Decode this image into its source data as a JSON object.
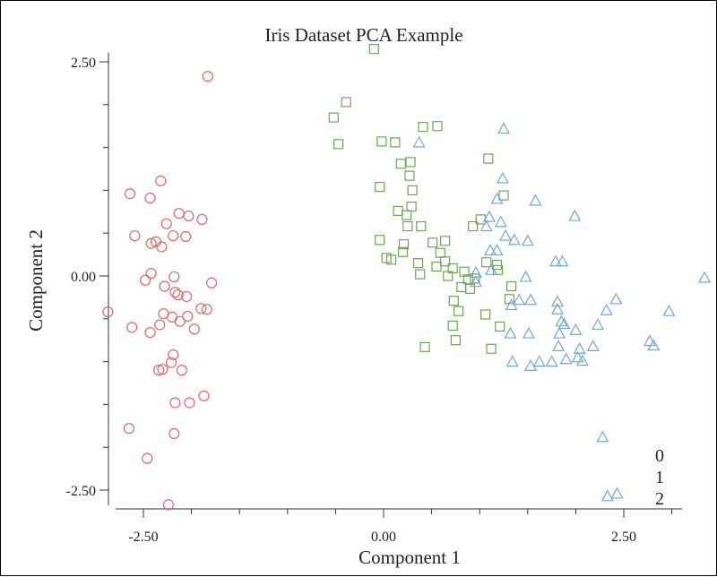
{
  "chart_data": {
    "type": "scatter",
    "title": "Iris Dataset PCA Example",
    "xlabel": "Component 1",
    "ylabel": "Component 2",
    "xlim": [
      -3.0,
      3.4
    ],
    "ylim": [
      -2.7,
      2.7
    ],
    "xticks": [
      -2.5,
      0.0,
      2.5
    ],
    "xtick_labels": [
      "-2.50",
      "0.00",
      "2.50"
    ],
    "yticks": [
      -2.5,
      0.0,
      2.5
    ],
    "ytick_labels": [
      "-2.50",
      "0.00",
      "2.50"
    ],
    "legend_position": "bottom-right",
    "grid": false,
    "series": [
      {
        "name": "0",
        "marker": "circle",
        "color": "#e06666",
        "points": [
          [
            -2.64,
            0.96
          ],
          [
            -2.43,
            0.91
          ],
          [
            -2.32,
            1.11
          ],
          [
            -2.59,
            0.47
          ],
          [
            -2.42,
            0.38
          ],
          [
            -2.13,
            0.73
          ],
          [
            -2.26,
            0.61
          ],
          [
            -2.03,
            0.7
          ],
          [
            -1.89,
            0.66
          ],
          [
            -2.06,
            0.46
          ],
          [
            -2.19,
            0.47
          ],
          [
            -2.37,
            0.4
          ],
          [
            -2.31,
            0.34
          ],
          [
            -1.83,
            2.33
          ],
          [
            -2.87,
            -0.42
          ],
          [
            -2.62,
            -0.6
          ],
          [
            -2.43,
            -0.66
          ],
          [
            -2.48,
            -0.05
          ],
          [
            -2.28,
            -0.12
          ],
          [
            -2.18,
            -0.01
          ],
          [
            -2.14,
            -0.22
          ],
          [
            -2.05,
            -0.24
          ],
          [
            -1.79,
            -0.08
          ],
          [
            -1.9,
            -0.38
          ],
          [
            -2.29,
            -0.44
          ],
          [
            -2.2,
            -0.48
          ],
          [
            -2.12,
            -0.53
          ],
          [
            -2.04,
            -0.47
          ],
          [
            -1.97,
            -0.62
          ],
          [
            -1.84,
            -0.39
          ],
          [
            -2.33,
            -0.57
          ],
          [
            -2.42,
            0.03
          ],
          [
            -2.17,
            -0.19
          ],
          [
            -2.19,
            -0.92
          ],
          [
            -2.21,
            -1.01
          ],
          [
            -2.34,
            -1.1
          ],
          [
            -2.3,
            -1.09
          ],
          [
            -2.1,
            -1.1
          ],
          [
            -2.17,
            -1.48
          ],
          [
            -2.02,
            -1.48
          ],
          [
            -1.87,
            -1.4
          ],
          [
            -2.65,
            -1.78
          ],
          [
            -2.18,
            -1.84
          ],
          [
            -2.46,
            -2.13
          ],
          [
            -2.24,
            -2.67
          ]
        ]
      },
      {
        "name": "1",
        "marker": "square",
        "color": "#6aa84f",
        "points": [
          [
            -0.1,
            2.65
          ],
          [
            -0.39,
            2.03
          ],
          [
            -0.52,
            1.85
          ],
          [
            -0.47,
            1.54
          ],
          [
            0.41,
            1.74
          ],
          [
            0.56,
            1.75
          ],
          [
            -0.02,
            1.57
          ],
          [
            0.12,
            1.56
          ],
          [
            1.09,
            1.37
          ],
          [
            0.28,
            1.33
          ],
          [
            0.18,
            1.31
          ],
          [
            0.27,
            1.17
          ],
          [
            -0.04,
            1.04
          ],
          [
            0.3,
            1.0
          ],
          [
            1.25,
            0.94
          ],
          [
            0.15,
            0.76
          ],
          [
            0.24,
            0.71
          ],
          [
            0.29,
            0.81
          ],
          [
            0.25,
            0.58
          ],
          [
            0.39,
            0.58
          ],
          [
            -0.04,
            0.42
          ],
          [
            0.21,
            0.37
          ],
          [
            0.51,
            0.39
          ],
          [
            0.64,
            0.41
          ],
          [
            0.03,
            0.21
          ],
          [
            0.08,
            0.19
          ],
          [
            0.2,
            0.28
          ],
          [
            0.36,
            0.15
          ],
          [
            0.59,
            0.27
          ],
          [
            0.64,
            0.17
          ],
          [
            0.55,
            0.11
          ],
          [
            0.67,
            0.0
          ],
          [
            0.38,
            0.02
          ],
          [
            0.72,
            0.09
          ],
          [
            0.84,
            0.05
          ],
          [
            1.07,
            0.16
          ],
          [
            1.19,
            0.07
          ],
          [
            1.33,
            -0.12
          ],
          [
            0.9,
            -0.15
          ],
          [
            0.95,
            -0.03
          ],
          [
            0.88,
            -0.04
          ],
          [
            0.93,
            0.58
          ],
          [
            1.18,
            0.13
          ],
          [
            0.81,
            -0.13
          ],
          [
            0.73,
            -0.29
          ],
          [
            0.78,
            -0.41
          ],
          [
            1.06,
            -0.45
          ],
          [
            0.75,
            -0.75
          ],
          [
            0.43,
            -0.83
          ],
          [
            1.21,
            -0.59
          ],
          [
            1.12,
            -0.85
          ],
          [
            0.72,
            -0.58
          ],
          [
            1.31,
            -0.27
          ],
          [
            1.01,
            0.66
          ]
        ]
      },
      {
        "name": "2",
        "marker": "triangle",
        "color": "#6fa8dc",
        "points": [
          [
            1.25,
            1.72
          ],
          [
            0.37,
            1.56
          ],
          [
            1.24,
            1.14
          ],
          [
            1.18,
            0.9
          ],
          [
            1.58,
            0.88
          ],
          [
            1.1,
            0.69
          ],
          [
            1.22,
            0.63
          ],
          [
            1.07,
            0.58
          ],
          [
            1.99,
            0.7
          ],
          [
            1.27,
            0.47
          ],
          [
            1.36,
            0.42
          ],
          [
            1.5,
            0.41
          ],
          [
            1.11,
            0.3
          ],
          [
            1.18,
            0.3
          ],
          [
            1.79,
            0.17
          ],
          [
            1.86,
            0.17
          ],
          [
            1.12,
            0.07
          ],
          [
            1.48,
            -0.01
          ],
          [
            0.96,
            -0.07
          ],
          [
            0.96,
            0.04
          ],
          [
            1.41,
            -0.28
          ],
          [
            1.53,
            -0.28
          ],
          [
            1.33,
            -0.34
          ],
          [
            1.81,
            -0.3
          ],
          [
            2.42,
            -0.27
          ],
          [
            2.32,
            -0.4
          ],
          [
            2.97,
            -0.41
          ],
          [
            1.81,
            -0.39
          ],
          [
            1.85,
            -0.53
          ],
          [
            1.88,
            -0.56
          ],
          [
            1.32,
            -0.67
          ],
          [
            1.51,
            -0.67
          ],
          [
            1.83,
            -0.67
          ],
          [
            2.0,
            -0.63
          ],
          [
            2.23,
            -0.57
          ],
          [
            1.82,
            -0.82
          ],
          [
            2.18,
            -0.82
          ],
          [
            2.04,
            -0.85
          ],
          [
            2.02,
            -0.95
          ],
          [
            2.07,
            -0.99
          ],
          [
            1.9,
            -0.97
          ],
          [
            1.75,
            -1.0
          ],
          [
            1.62,
            -1.0
          ],
          [
            1.53,
            -1.05
          ],
          [
            1.34,
            -1.0
          ],
          [
            3.34,
            -0.02
          ],
          [
            2.81,
            -0.81
          ],
          [
            2.77,
            -0.76
          ],
          [
            2.28,
            -1.88
          ],
          [
            2.43,
            -2.54
          ],
          [
            2.33,
            -2.57
          ]
        ]
      }
    ]
  }
}
